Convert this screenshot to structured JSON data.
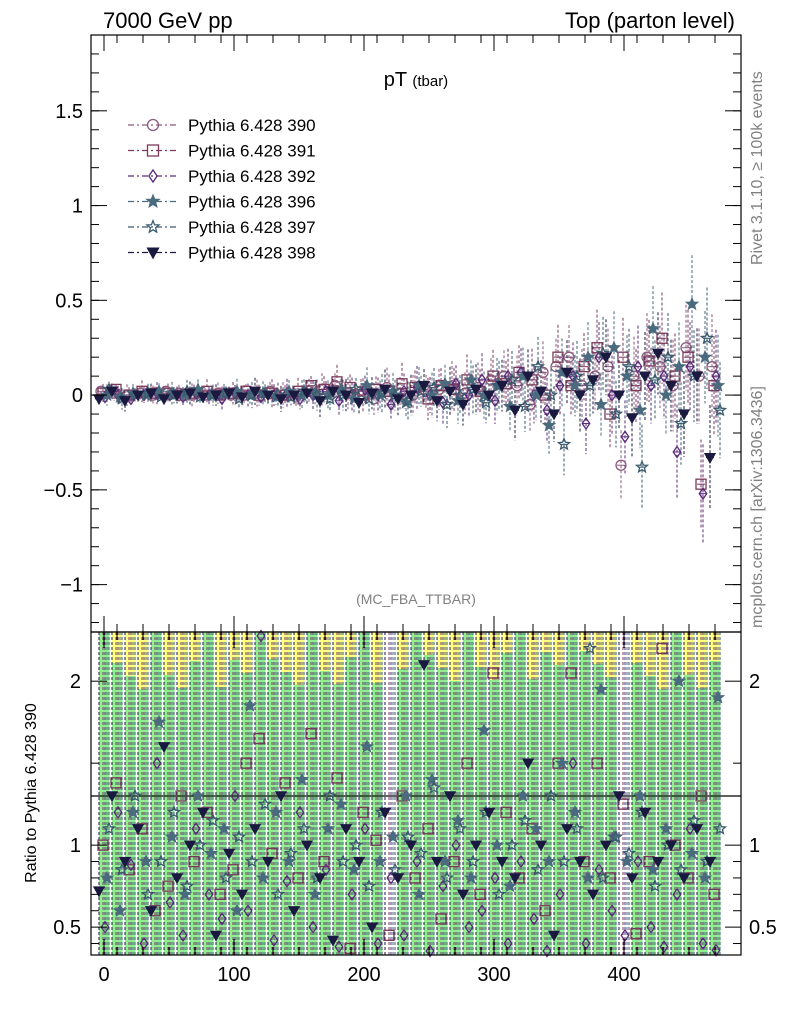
{
  "header": {
    "left": "7000 GeV pp",
    "right": "Top (parton level)"
  },
  "side_labels": {
    "rivet": "Rivet 3.1.10, ≥ 100k events",
    "mcplots": "mcplots.cern.ch [arXiv:1306.3436]"
  },
  "analysis_tag": "(MC_FBA_TTBAR)",
  "chart_data": [
    {
      "panel": "main",
      "type": "scatter",
      "title": "pT",
      "title_sub": "(tbar)",
      "xlim": [
        -10,
        490
      ],
      "ylim": [
        -1.25,
        1.9
      ],
      "yticks": [
        -1,
        -0.5,
        0,
        0.5,
        1,
        1.5
      ],
      "ytick_labels": [
        "−1",
        "−0.5",
        "0",
        "0.5",
        "1",
        "1.5"
      ],
      "legend_position": "top-left",
      "x": [
        0,
        10,
        20,
        30,
        40,
        50,
        60,
        70,
        80,
        90,
        100,
        110,
        120,
        130,
        140,
        150,
        160,
        170,
        180,
        190,
        200,
        210,
        220,
        230,
        240,
        250,
        260,
        270,
        280,
        290,
        300,
        310,
        320,
        330,
        340,
        350,
        360,
        370,
        380,
        390,
        400,
        410,
        420,
        430,
        440,
        450,
        460,
        470
      ],
      "series": [
        {
          "name": "Pythia 6.428 390",
          "marker": "circle-open",
          "color": "#8a5a7e",
          "values": [
            0.02,
            0.01,
            0.0,
            0.01,
            0.0,
            0.02,
            0.01,
            0.0,
            0.0,
            0.01,
            0.0,
            0.0,
            0.01,
            0.02,
            0.0,
            -0.01,
            0.02,
            0.03,
            0.05,
            0.01,
            0.02,
            -0.02,
            0.04,
            0.01,
            0.0,
            0.02,
            0.03,
            0.05,
            0.01,
            0.04,
            0.08,
            0.1,
            0.05,
            -0.05,
            0.12,
            0.15,
            0.2,
            0.05,
            0.1,
            0.15,
            -0.37,
            0.1,
            0.2,
            0.15,
            0.05,
            0.25,
            0.1,
            0.15
          ]
        },
        {
          "name": "Pythia 6.428 391",
          "marker": "square-open",
          "color": "#7a3a5a",
          "values": [
            0.01,
            0.03,
            0.0,
            0.02,
            0.01,
            0.01,
            0.0,
            0.01,
            0.02,
            0.0,
            0.01,
            0.02,
            0.0,
            0.01,
            0.0,
            0.02,
            0.05,
            0.03,
            0.07,
            0.04,
            0.0,
            0.03,
            0.02,
            0.06,
            0.04,
            -0.02,
            0.05,
            0.03,
            0.08,
            0.02,
            0.1,
            0.06,
            0.12,
            0.08,
            0.0,
            0.2,
            0.05,
            0.15,
            0.25,
            -0.1,
            0.2,
            0.05,
            0.18,
            0.3,
            0.1,
            0.2,
            -0.47,
            0.05
          ]
        },
        {
          "name": "Pythia 6.428 392",
          "marker": "diamond-open",
          "color": "#5a2a7a",
          "values": [
            -0.01,
            0.0,
            -0.02,
            0.0,
            0.01,
            0.0,
            -0.01,
            0.01,
            0.0,
            -0.02,
            0.01,
            0.0,
            -0.01,
            0.0,
            0.01,
            -0.02,
            0.0,
            0.02,
            -0.03,
            0.0,
            0.03,
            0.0,
            -0.05,
            0.02,
            0.04,
            0.0,
            -0.04,
            0.06,
            0.0,
            0.08,
            -0.03,
            0.1,
            0.12,
            0.0,
            -0.08,
            0.05,
            0.1,
            -0.15,
            0.2,
            0.0,
            -0.22,
            0.15,
            0.05,
            0.1,
            -0.3,
            0.15,
            -0.52,
            0.1
          ]
        },
        {
          "name": "Pythia 6.428 396",
          "marker": "star-filled",
          "color": "#4a6a7e",
          "values": [
            0.0,
            -0.01,
            0.01,
            0.0,
            0.02,
            0.01,
            0.0,
            0.03,
            0.0,
            0.01,
            0.02,
            0.0,
            0.01,
            -0.01,
            0.02,
            0.0,
            0.01,
            0.0,
            0.03,
            -0.02,
            0.05,
            0.0,
            0.02,
            -0.04,
            0.05,
            0.0,
            0.06,
            -0.03,
            0.08,
            0.0,
            0.05,
            -0.06,
            0.1,
            0.0,
            -0.16,
            0.12,
            0.05,
            0.2,
            -0.05,
            0.25,
            0.1,
            -0.08,
            0.35,
            0.0,
            0.15,
            0.48,
            0.2,
            0.05
          ]
        },
        {
          "name": "Pythia 6.428 397",
          "marker": "star-open",
          "color": "#3a5a6e",
          "values": [
            0.03,
            -0.02,
            0.0,
            0.01,
            -0.01,
            0.0,
            0.02,
            -0.01,
            0.0,
            0.01,
            -0.02,
            0.0,
            0.01,
            0.0,
            -0.01,
            0.02,
            0.0,
            -0.02,
            0.0,
            0.03,
            -0.02,
            0.01,
            0.0,
            -0.03,
            0.02,
            0.04,
            -0.05,
            0.0,
            0.03,
            -0.04,
            0.05,
            0.08,
            -0.06,
            0.15,
            0.0,
            -0.26,
            0.1,
            0.05,
            0.22,
            -0.1,
            0.15,
            -0.38,
            0.08,
            0.2,
            -0.15,
            0.1,
            0.3,
            -0.08
          ]
        },
        {
          "name": "Pythia 6.428 398",
          "marker": "triangle-down-filled",
          "color": "#1a1a40",
          "values": [
            -0.02,
            0.02,
            -0.03,
            0.0,
            0.01,
            -0.02,
            0.0,
            0.01,
            -0.01,
            0.0,
            0.01,
            -0.01,
            0.02,
            0.0,
            -0.02,
            0.0,
            0.01,
            -0.03,
            0.02,
            0.0,
            -0.04,
            0.01,
            0.03,
            -0.02,
            0.0,
            0.05,
            -0.03,
            0.02,
            -0.05,
            0.03,
            0.0,
            0.05,
            -0.08,
            0.1,
            0.02,
            -0.1,
            0.12,
            0.0,
            0.08,
            0.2,
            0.0,
            -0.12,
            0.1,
            0.22,
            0.05,
            -0.1,
            0.1,
            -0.33
          ]
        }
      ]
    },
    {
      "panel": "ratio",
      "type": "scatter",
      "ylabel": "Ratio to Pythia 6.428 390",
      "xlim": [
        -10,
        490
      ],
      "ylim": [
        0.33,
        2.3
      ],
      "yticks": [
        0.5,
        1,
        2
      ],
      "ytick_labels": [
        "0.5",
        "1",
        "2"
      ],
      "xticks": [
        0,
        100,
        200,
        300,
        400
      ],
      "xtick_labels": [
        "0",
        "100",
        "200",
        "300",
        "400"
      ],
      "reference_line": 1,
      "band_colors": {
        "inner": "#90ee90",
        "outer": "#ffff80"
      },
      "x": [
        0,
        10,
        20,
        30,
        40,
        50,
        60,
        70,
        80,
        90,
        100,
        110,
        120,
        130,
        140,
        150,
        160,
        170,
        180,
        190,
        200,
        210,
        220,
        230,
        240,
        250,
        260,
        270,
        280,
        290,
        300,
        310,
        320,
        330,
        340,
        350,
        360,
        370,
        380,
        390,
        400,
        410,
        420,
        430,
        440,
        450,
        460,
        470
      ],
      "series": [
        {
          "name": "Pythia 6.428 391",
          "values": [
            1.0,
            1.38,
            0.85,
            1.1,
            0.6,
            0.75,
            1.3,
            0.9,
            1.2,
            0.7,
            0.85,
            1.5,
            1.65,
            0.95,
            1.38,
            0.8,
            1.68,
            0.9,
            1.41,
            0.37,
            1.2,
            1.03,
            0.45,
            1.3,
            0.8,
            1.1,
            0.55,
            0.9,
            1.5,
            0.7,
            2.05,
            1.2,
            0.8,
            1.1,
            0.6,
            1.5,
            2.05,
            0.9,
            1.5,
            0.8,
            1.25,
            0.46,
            0.9,
            2.2,
            1.0,
            0.8,
            1.3,
            0.7
          ]
        },
        {
          "name": "Pythia 6.428 392",
          "values": [
            0.5,
            1.2,
            0.88,
            0.4,
            1.5,
            0.65,
            0.45,
            1.1,
            0.7,
            0.55,
            1.3,
            0.6,
            2.3,
            0.42,
            0.78,
            1.2,
            0.5,
            0.85,
            0.38,
            0.7,
            1.1,
            0.4,
            0.8,
            0.45,
            0.9,
            0.35,
            0.75,
            1.0,
            0.5,
            0.6,
            0.8,
            0.4,
            0.9,
            0.55,
            0.35,
            0.7,
            1.5,
            0.4,
            0.85,
            0.6,
            0.45,
            0.9,
            0.5,
            0.38,
            0.7,
            1.1,
            0.4,
            0.36
          ]
        },
        {
          "name": "Pythia 6.428 396",
          "values": [
            0.8,
            0.6,
            1.2,
            0.9,
            1.75,
            1.05,
            0.7,
            1.3,
            0.95,
            1.1,
            0.6,
            1.85,
            0.8,
            1.2,
            0.9,
            1.4,
            0.7,
            1.1,
            1.25,
            0.85,
            1.6,
            0.9,
            1.05,
            1.3,
            0.7,
            1.4,
            0.9,
            1.15,
            0.8,
            1.7,
            1.0,
            0.75,
            1.3,
            1.1,
            0.9,
            1.5,
            1.2,
            0.8,
            1.95,
            1.05,
            0.9,
            1.3,
            0.85,
            1.1,
            2.0,
            0.95,
            0.8,
            1.9
          ]
        },
        {
          "name": "Pythia 6.428 397",
          "values": [
            1.1,
            0.85,
            1.3,
            0.7,
            0.9,
            1.2,
            0.75,
            1.0,
            1.15,
            0.8,
            1.05,
            0.9,
            1.25,
            0.7,
            0.95,
            1.1,
            0.8,
            1.3,
            0.9,
            1.0,
            0.75,
            1.2,
            0.85,
            1.05,
            0.95,
            1.35,
            0.8,
            1.1,
            0.9,
            1.2,
            0.7,
            1.0,
            1.15,
            0.85,
            1.3,
            0.9,
            1.1,
            2.2,
            0.8,
            1.05,
            0.95,
            1.2,
            0.75,
            1.0,
            0.85,
            1.15,
            0.9,
            1.1
          ]
        },
        {
          "name": "Pythia 6.428 398",
          "values": [
            0.72,
            1.3,
            0.9,
            1.1,
            0.6,
            1.6,
            0.8,
            1.0,
            1.2,
            0.45,
            0.95,
            0.7,
            1.1,
            0.9,
            1.3,
            0.6,
            1.0,
            0.8,
            0.42,
            1.1,
            0.9,
            0.5,
            1.2,
            0.8,
            1.0,
            2.1,
            0.9,
            1.3,
            0.7,
            1.0,
            1.2,
            0.9,
            0.8,
            1.5,
            1.0,
            0.45,
            1.1,
            0.9,
            0.7,
            1.0,
            1.3,
            0.8,
            1.2,
            0.9,
            1.0,
            0.8,
            1.1,
            0.9
          ]
        }
      ]
    }
  ]
}
